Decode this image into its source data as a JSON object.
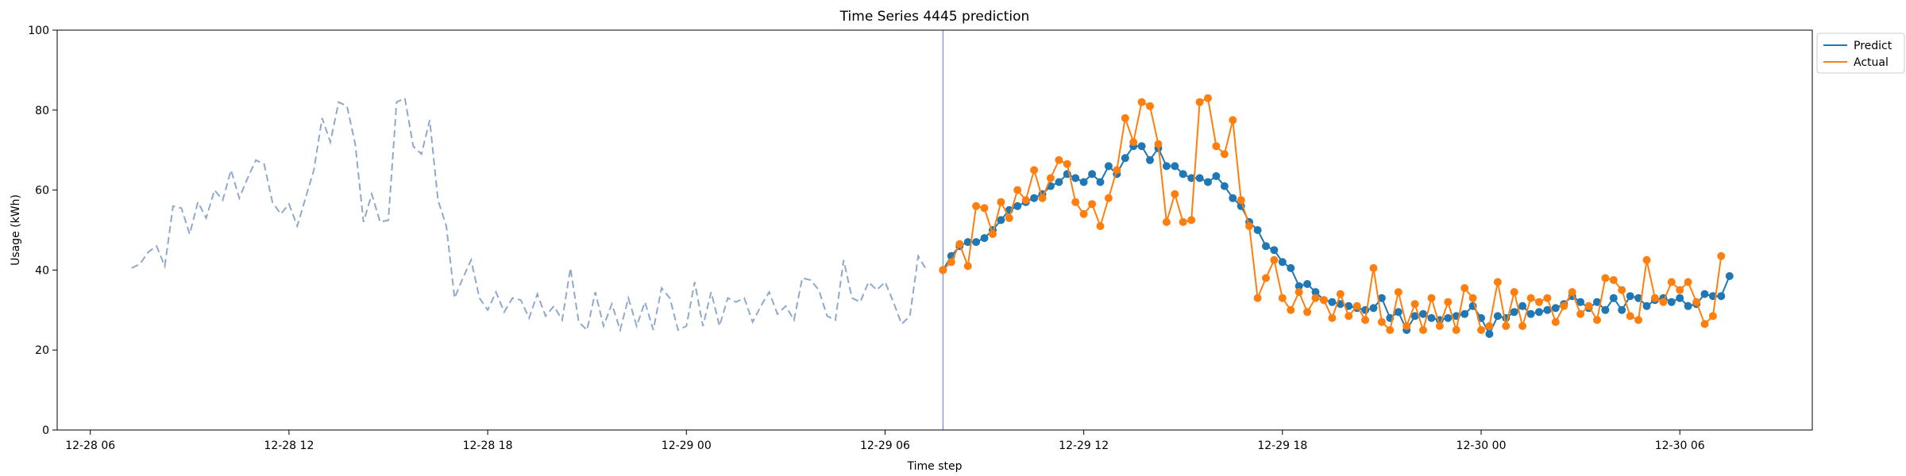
{
  "chart_data": {
    "type": "line",
    "title": "Time Series 4445 prediction",
    "xlabel": "Time step",
    "ylabel": "Usage (kWh)",
    "ylim": [
      0,
      100
    ],
    "yticks": [
      0,
      20,
      40,
      60,
      80,
      100
    ],
    "xlim": [
      "2028-12-28 05:00",
      "2028-12-30 10:00"
    ],
    "xticks": [
      {
        "x": "2028-12-28 06:00",
        "label": "12-28 06"
      },
      {
        "x": "2028-12-28 12:00",
        "label": "12-28 12"
      },
      {
        "x": "2028-12-28 18:00",
        "label": "12-28 18"
      },
      {
        "x": "2028-12-29 00:00",
        "label": "12-29 00"
      },
      {
        "x": "2028-12-29 06:00",
        "label": "12-29 06"
      },
      {
        "x": "2028-12-29 12:00",
        "label": "12-29 12"
      },
      {
        "x": "2028-12-29 18:00",
        "label": "12-29 18"
      },
      {
        "x": "2028-12-30 00:00",
        "label": "12-30 00"
      },
      {
        "x": "2028-12-30 06:00",
        "label": "12-30 06"
      }
    ],
    "grid": false,
    "legend": "top-right",
    "forecast_start": "2028-12-29 07:45",
    "history": {
      "start": "2028-12-28 07:15",
      "interval_minutes": 15,
      "color": "#8fa9cc",
      "style": "dashed",
      "values": [
        40.5,
        41.5,
        44.5,
        46,
        41,
        56,
        55.5,
        49,
        57,
        53,
        60,
        57.5,
        65,
        58,
        63,
        67.5,
        66.5,
        57,
        54,
        56.5,
        51,
        58,
        65,
        78,
        72,
        82,
        81,
        71.5,
        52,
        59,
        52,
        52.5,
        82,
        83,
        71,
        69,
        77.5,
        57.5,
        51,
        33,
        38,
        42.5,
        33,
        30,
        34.5,
        29.5,
        33,
        32.5,
        28,
        34,
        28.5,
        31,
        27.5,
        40.5,
        27,
        25,
        34.5,
        26,
        31.5,
        25,
        33,
        26,
        32,
        25,
        35.5,
        33,
        25,
        26,
        37,
        26,
        34.5,
        26,
        33,
        32,
        33,
        27,
        31,
        34.5,
        29,
        31,
        27.5,
        38,
        37.5,
        35,
        28.5,
        27.5,
        42.5,
        33,
        32,
        37,
        35,
        37,
        32,
        26.5,
        28.5,
        43.5,
        40
      ]
    },
    "series": [
      {
        "name": "Predict",
        "color": "#1f77b4",
        "start": "2028-12-29 07:45",
        "interval_minutes": 15,
        "values": [
          40,
          43.5,
          46,
          47,
          47,
          48,
          50,
          52.5,
          55,
          56,
          57,
          58,
          59,
          61,
          62,
          64,
          63,
          62,
          64,
          62,
          66,
          64,
          68,
          71,
          71,
          67.5,
          70.5,
          66,
          66,
          64,
          63,
          63,
          62,
          63.5,
          61,
          58,
          56,
          52,
          50,
          46,
          45,
          42,
          40.5,
          36,
          36.5,
          34.5,
          32.5,
          32,
          31.5,
          31,
          30.5,
          30,
          30.5,
          33,
          28,
          29.5,
          25,
          28.5,
          29,
          28,
          27.5,
          28,
          28.5,
          29,
          31,
          28,
          24,
          28.5,
          28,
          29.5,
          31,
          29,
          29.5,
          30,
          30.5,
          31.5,
          33.5,
          32,
          30.5,
          32,
          30,
          33,
          30,
          33.5,
          33,
          31,
          32.5,
          33,
          32,
          33,
          31,
          31.5,
          34,
          33.5,
          33.5,
          38.5
        ]
      },
      {
        "name": "Actual",
        "color": "#ff7f0e",
        "start": "2028-12-29 07:45",
        "interval_minutes": 15,
        "values": [
          40,
          42,
          46.5,
          41,
          56,
          55.5,
          49,
          57,
          53,
          60,
          57.5,
          65,
          58,
          63,
          67.5,
          66.5,
          57,
          54,
          56.5,
          51,
          58,
          65,
          78,
          72,
          82,
          81,
          71.5,
          52,
          59,
          52,
          52.5,
          82,
          83,
          71,
          69,
          77.5,
          57.5,
          51,
          33,
          38,
          42.5,
          33,
          30,
          34.5,
          29.5,
          33,
          32.5,
          28,
          34,
          28.5,
          31,
          27.5,
          40.5,
          27,
          25,
          34.5,
          26,
          31.5,
          25,
          33,
          26,
          32,
          25,
          35.5,
          33,
          25,
          26,
          37,
          26,
          34.5,
          26,
          33,
          32,
          33,
          27,
          31,
          34.5,
          29,
          31,
          27.5,
          38,
          37.5,
          35,
          28.5,
          27.5,
          42.5,
          33,
          32,
          37,
          35,
          37,
          32,
          26.5,
          28.5,
          43.5
        ]
      }
    ]
  }
}
